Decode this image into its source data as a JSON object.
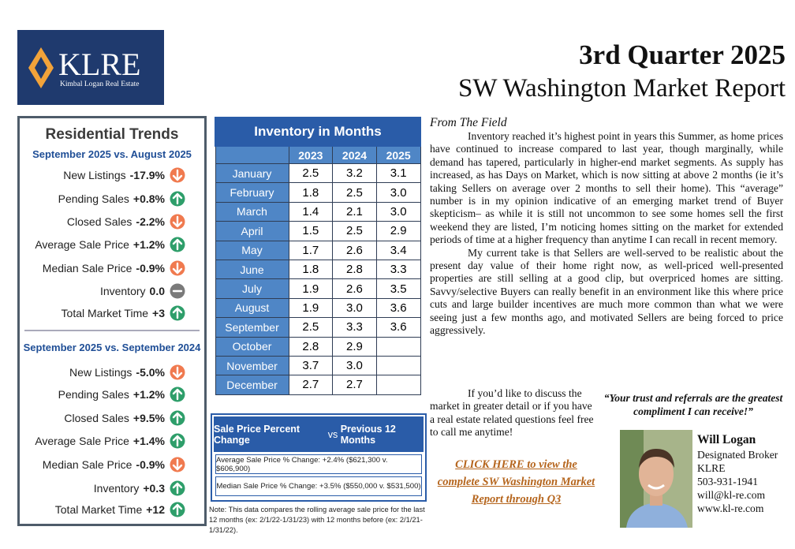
{
  "logo": {
    "name": "KLRE",
    "tagline": "Kimbal Logan Real Estate"
  },
  "header": {
    "title": "3rd Quarter 2025",
    "subtitle": "SW Washington Market Report"
  },
  "trends": {
    "title": "Residential Trends",
    "sections": [
      {
        "heading": "September 2025 vs. August 2025",
        "rows": [
          {
            "label": "New Listings",
            "change": "-17.9%",
            "direction": "down"
          },
          {
            "label": "Pending Sales",
            "change": "+0.8%",
            "direction": "up"
          },
          {
            "label": "Closed Sales",
            "change": "-2.2%",
            "direction": "down"
          },
          {
            "label": "Average Sale Price",
            "change": "+1.2%",
            "direction": "up"
          },
          {
            "label": "Median Sale Price",
            "change": "-0.9%",
            "direction": "down"
          },
          {
            "label": "Inventory",
            "change": "0.0",
            "direction": "flat"
          },
          {
            "label": "Total Market Time",
            "change": "+3",
            "direction": "up"
          }
        ]
      },
      {
        "heading": "September 2025 vs. September 2024",
        "rows": [
          {
            "label": "New Listings",
            "change": "-5.0%",
            "direction": "down"
          },
          {
            "label": "Pending Sales",
            "change": "+1.2%",
            "direction": "up"
          },
          {
            "label": "Closed Sales",
            "change": "+9.5%",
            "direction": "up"
          },
          {
            "label": "Average Sale Price",
            "change": "+1.4%",
            "direction": "up"
          },
          {
            "label": "Median Sale Price",
            "change": "-0.9%",
            "direction": "down"
          },
          {
            "label": "Inventory",
            "change": "+0.3",
            "direction": "up"
          },
          {
            "label": "Total Market Time",
            "change": "+12",
            "direction": "up"
          }
        ]
      }
    ]
  },
  "inventory": {
    "title": "Inventory in Months",
    "columns": [
      "2023",
      "2024",
      "2025"
    ],
    "rows": [
      {
        "month": "January",
        "values": [
          "2.5",
          "3.2",
          "3.1"
        ]
      },
      {
        "month": "February",
        "values": [
          "1.8",
          "2.5",
          "3.0"
        ]
      },
      {
        "month": "March",
        "values": [
          "1.4",
          "2.1",
          "3.0"
        ]
      },
      {
        "month": "April",
        "values": [
          "1.5",
          "2.5",
          "2.9"
        ]
      },
      {
        "month": "May",
        "values": [
          "1.7",
          "2.6",
          "3.4"
        ]
      },
      {
        "month": "June",
        "values": [
          "1.8",
          "2.8",
          "3.3"
        ]
      },
      {
        "month": "July",
        "values": [
          "1.9",
          "2.6",
          "3.5"
        ]
      },
      {
        "month": "August",
        "values": [
          "1.9",
          "3.0",
          "3.6"
        ]
      },
      {
        "month": "September",
        "values": [
          "2.5",
          "3.3",
          "3.6"
        ]
      },
      {
        "month": "October",
        "values": [
          "2.8",
          "2.9",
          null
        ]
      },
      {
        "month": "November",
        "values": [
          "3.7",
          "3.0",
          null
        ]
      },
      {
        "month": "December",
        "values": [
          "2.7",
          "2.7",
          null
        ]
      }
    ]
  },
  "sale_price": {
    "title_main": "Sale Price Percent Change",
    "title_vs": "vs",
    "title_rest": "Previous 12 Months",
    "lines": [
      "Average Sale Price % Change: +2.4% ($621,300 v. $606,900)",
      "Median Sale Price % Change: +3.5% ($550,000 v. $531,500)"
    ],
    "note": "Note: This data compares the rolling average sale price for the last 12 months (ex: 2/1/22-1/31/23) with 12 months before (ex: 2/1/21-1/31/22)."
  },
  "article": {
    "heading": "From The Field",
    "paragraphs": [
      "Inventory reached it’s highest point in years this Summer, as home prices have continued to increase compared to last year, though marginally, while demand has tapered, particularly in higher-end market segments. As supply has increased, as has Days on Market, which is now sitting at above 2 months (ie it’s taking Sellers on average over 2 months to sell their home). This “average” number is in my opinion indicative of an emerging market trend of Buyer skepticism– as while it is still not uncommon to see some homes sell the first weekend they are listed, I’m noticing homes sitting on the market for extended periods of time at a higher frequency than anytime I can recall in recent memory.",
      "My current take is that Sellers are well-served to be realistic about the present day value of their home right now, as well-priced well-presented properties are still selling at a good clip, but overpriced homes are sitting. Savvy/selective Buyers can really benefit in an environment like this where price cuts and large builder incentives are much more common than what we were seeing just a few months ago, and motivated Sellers are being forced to price aggressively.",
      "If you’d like to discuss the market in greater detail or if you have a real estate related questions feel free to call me anytime!"
    ]
  },
  "quote": "“Your trust and referrals are the greatest compliment I can receive!”",
  "link": "CLICK HERE to view the complete SW Washington Market Report through Q3",
  "contact": {
    "name": "Will Logan",
    "lines": [
      "Designated Broker",
      "KLRE",
      "503-931-1941",
      "will@kl-re.com",
      "www.kl-re.com"
    ]
  }
}
